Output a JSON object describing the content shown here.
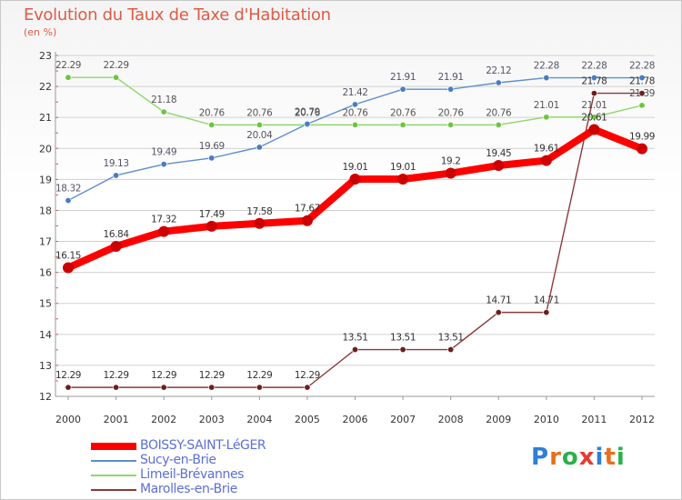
{
  "header": {
    "title": "Evolution du Taux de Taxe d'Habitation",
    "subtitle": "(en %)"
  },
  "logo": {
    "text": "Proxiti",
    "letter_colors": [
      "#2f7fd6",
      "#e5701d",
      "#2bb04a",
      "#e63c2f",
      "#2f7fd6",
      "#e5701d",
      "#2bb04a"
    ]
  },
  "chart_data": {
    "type": "line",
    "x": [
      2000,
      2001,
      2002,
      2003,
      2004,
      2005,
      2006,
      2007,
      2008,
      2009,
      2010,
      2011,
      2012
    ],
    "ylim": [
      12,
      23
    ],
    "yticks": [
      12,
      13,
      14,
      15,
      16,
      17,
      18,
      19,
      20,
      21,
      22,
      23
    ],
    "grid": true,
    "legend_position": "bottom-left",
    "series": [
      {
        "name": "BOISSY-SAINT-LéGER",
        "color": "#ff0000",
        "marker_color": "#cc0000",
        "values": [
          16.15,
          16.84,
          17.32,
          17.49,
          17.58,
          17.67,
          19.01,
          19.01,
          19.2,
          19.45,
          19.61,
          20.61,
          19.99
        ],
        "labels": [
          "16.15",
          "16.84",
          "17.32",
          "17.49",
          "17.58",
          "17.67",
          "19.01",
          "19.01",
          "19.2",
          "19.45",
          "19.61",
          "20.61",
          "19.99"
        ]
      },
      {
        "name": "Sucy-en-Brie",
        "color": "#5e8ecd",
        "marker_color": "#4a7cc0",
        "values": [
          18.32,
          19.13,
          19.49,
          19.69,
          20.04,
          20.79,
          21.42,
          21.91,
          21.91,
          22.12,
          22.28,
          22.28,
          22.28
        ],
        "labels": [
          "18.32",
          "19.13",
          "19.49",
          "19.69",
          "20.04",
          "20.79",
          "21.42",
          "21.91",
          "21.91",
          "22.12",
          "22.28",
          "22.28",
          "22.28"
        ]
      },
      {
        "name": "Limeil-Brévannes",
        "color": "#8fd66a",
        "marker_color": "#6cc43f",
        "values": [
          22.29,
          22.29,
          21.18,
          20.76,
          20.76,
          20.76,
          20.76,
          20.76,
          20.76,
          20.76,
          21.01,
          21.01,
          21.39
        ],
        "labels": [
          "22.29",
          "22.29",
          "21.18",
          "20.76",
          "20.76",
          "20.76",
          "20.76",
          "20.76",
          "20.76",
          "20.76",
          "21.01",
          "21.01",
          "21.39"
        ]
      },
      {
        "name": "Marolles-en-Brie",
        "color": "#8a3a3a",
        "marker_color": "#6a1f1f",
        "values": [
          12.29,
          12.29,
          12.29,
          12.29,
          12.29,
          12.29,
          13.51,
          13.51,
          13.51,
          14.71,
          14.71,
          21.78,
          21.78
        ],
        "labels": [
          "12.29",
          "12.29",
          "12.29",
          "12.29",
          "12.29",
          "12.29",
          "13.51",
          "13.51",
          "13.51",
          "14.71",
          "14.71",
          "21.78",
          "21.78"
        ]
      }
    ]
  }
}
